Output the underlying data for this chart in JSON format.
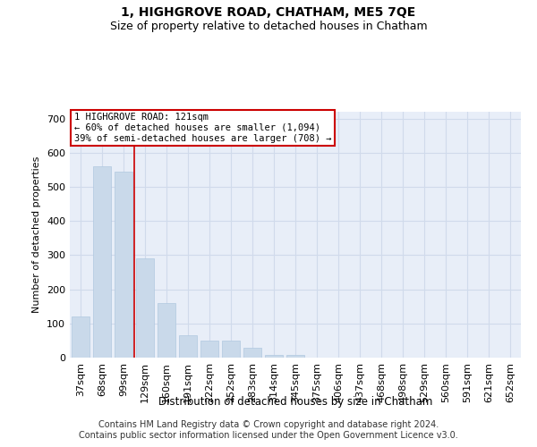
{
  "title": "1, HIGHGROVE ROAD, CHATHAM, ME5 7QE",
  "subtitle": "Size of property relative to detached houses in Chatham",
  "xlabel": "Distribution of detached houses by size in Chatham",
  "ylabel": "Number of detached properties",
  "categories": [
    "37sqm",
    "68sqm",
    "99sqm",
    "129sqm",
    "160sqm",
    "191sqm",
    "222sqm",
    "252sqm",
    "283sqm",
    "314sqm",
    "345sqm",
    "375sqm",
    "406sqm",
    "437sqm",
    "468sqm",
    "498sqm",
    "529sqm",
    "560sqm",
    "591sqm",
    "621sqm",
    "652sqm"
  ],
  "values": [
    120,
    560,
    545,
    290,
    160,
    65,
    50,
    50,
    30,
    8,
    8,
    0,
    0,
    0,
    0,
    0,
    0,
    0,
    0,
    0,
    0
  ],
  "bar_color": "#c9d9ea",
  "bar_edge_color": "#b0c8e0",
  "vline_x_index": 2.5,
  "annotation_text": "1 HIGHGROVE ROAD: 121sqm\n← 60% of detached houses are smaller (1,094)\n39% of semi-detached houses are larger (708) →",
  "annotation_box_facecolor": "#ffffff",
  "annotation_box_edgecolor": "#cc0000",
  "vline_color": "#cc0000",
  "ylim": [
    0,
    720
  ],
  "yticks": [
    0,
    100,
    200,
    300,
    400,
    500,
    600,
    700
  ],
  "grid_color": "#d0daeb",
  "background_color": "#e8eef8",
  "footer_line1": "Contains HM Land Registry data © Crown copyright and database right 2024.",
  "footer_line2": "Contains public sector information licensed under the Open Government Licence v3.0.",
  "title_fontsize": 10,
  "subtitle_fontsize": 9,
  "footer_fontsize": 7
}
